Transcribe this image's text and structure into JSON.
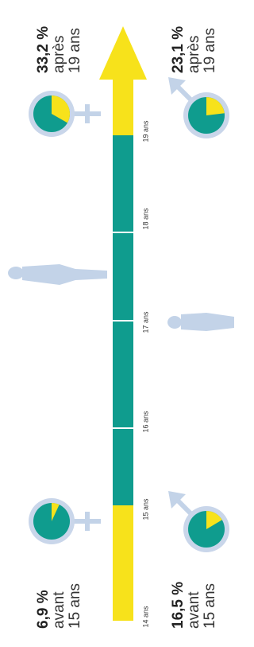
{
  "stats": [
    {
      "label": "6,9 %",
      "value": 6.9,
      "line1": "avant",
      "line2": "15 ans"
    },
    {
      "label": "33,2 %",
      "value": 33.2,
      "line1": "après",
      "line2": "19 ans"
    },
    {
      "label": "16,5 %",
      "value": 16.5,
      "line1": "avant",
      "line2": "15 ans"
    },
    {
      "label": "23,1 %",
      "value": 23.1,
      "line1": "après",
      "line2": "19 ans"
    }
  ],
  "ages": [
    "14 ans",
    "15 ans",
    "16 ans",
    "17 ans",
    "18 ans",
    "19 ans"
  ]
}
